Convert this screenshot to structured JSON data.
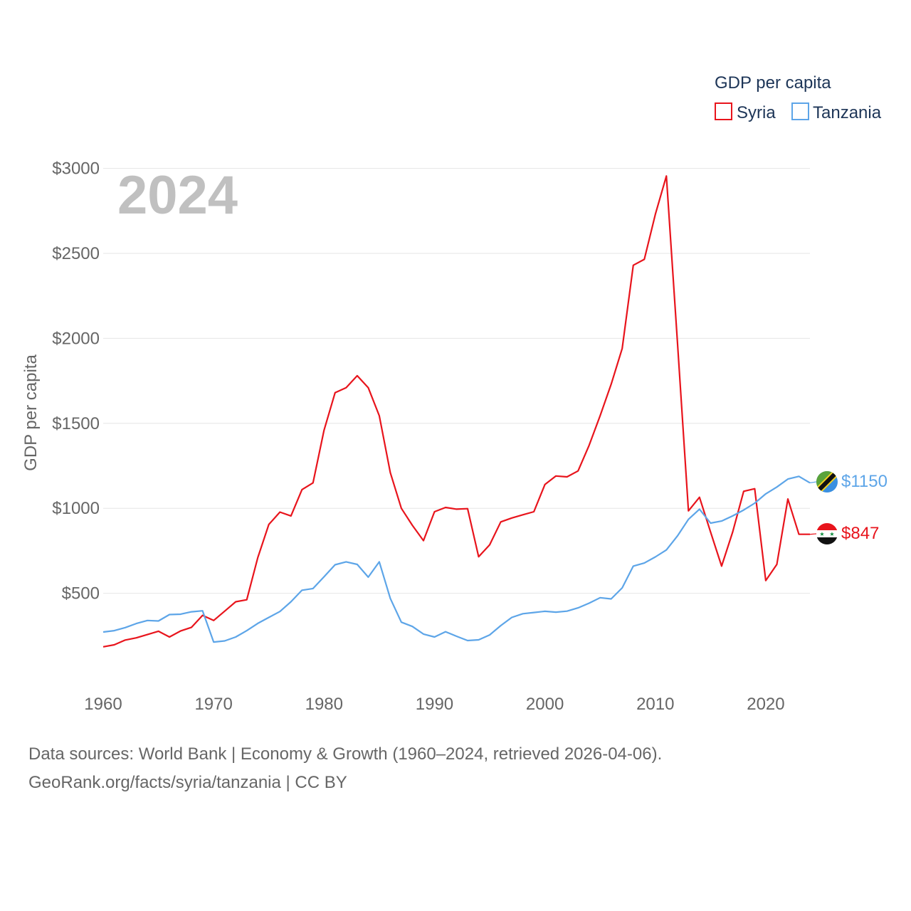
{
  "chart_data": {
    "type": "line",
    "title": "GDP per capita",
    "current_year_label": "2024",
    "ylabel": "GDP per capita",
    "xlabel": "",
    "xlim": [
      1960,
      2024
    ],
    "ylim": [
      0,
      3000
    ],
    "y_ticks": [
      500,
      1000,
      1500,
      2000,
      2500,
      3000
    ],
    "y_tick_labels": [
      "$500",
      "$1000",
      "$1500",
      "$2000",
      "$2500",
      "$3000"
    ],
    "x_ticks": [
      1960,
      1970,
      1980,
      1990,
      2000,
      2010,
      2020
    ],
    "x_tick_labels": [
      "1960",
      "1970",
      "1980",
      "1990",
      "2000",
      "2010",
      "2020"
    ],
    "grid": true,
    "legend_position": "top-right",
    "series": [
      {
        "name": "Syria",
        "color": "#e8141c",
        "end_label": "$847",
        "flag": "syria-flag",
        "x": [
          1960,
          1961,
          1962,
          1963,
          1964,
          1965,
          1966,
          1967,
          1968,
          1969,
          1970,
          1971,
          1972,
          1973,
          1974,
          1975,
          1976,
          1977,
          1978,
          1979,
          1980,
          1981,
          1982,
          1983,
          1984,
          1985,
          1986,
          1987,
          1988,
          1989,
          1990,
          1991,
          1992,
          1993,
          1994,
          1995,
          1996,
          1997,
          1998,
          1999,
          2000,
          2001,
          2002,
          2003,
          2004,
          2005,
          2006,
          2007,
          2008,
          2009,
          2010,
          2011,
          2012,
          2013,
          2014,
          2015,
          2016,
          2017,
          2018,
          2019,
          2020,
          2021,
          2022,
          2023,
          2024
        ],
        "values": [
          185,
          197,
          225,
          238,
          257,
          277,
          243,
          278,
          300,
          370,
          340,
          395,
          450,
          462,
          710,
          905,
          978,
          955,
          1110,
          1150,
          1460,
          1680,
          1710,
          1780,
          1710,
          1545,
          1210,
          1000,
          900,
          810,
          980,
          1005,
          995,
          998,
          715,
          785,
          920,
          943,
          962,
          980,
          1140,
          1190,
          1185,
          1220,
          1370,
          1545,
          1730,
          1940,
          2430,
          2465,
          2730,
          2955,
          1980,
          985,
          1065,
          860,
          660,
          860,
          1100,
          1115,
          575,
          670,
          1055,
          847,
          847
        ]
      },
      {
        "name": "Tanzania",
        "color": "#5da5e8",
        "end_label": "$1150",
        "flag": "tanzania-flag",
        "x": [
          1960,
          1961,
          1962,
          1963,
          1964,
          1965,
          1966,
          1967,
          1968,
          1969,
          1970,
          1971,
          1972,
          1973,
          1974,
          1975,
          1976,
          1977,
          1978,
          1979,
          1980,
          1981,
          1982,
          1983,
          1984,
          1985,
          1986,
          1987,
          1988,
          1989,
          1990,
          1991,
          1992,
          1993,
          1994,
          1995,
          1996,
          1997,
          1998,
          1999,
          2000,
          2001,
          2002,
          2003,
          2004,
          2005,
          2006,
          2007,
          2008,
          2009,
          2010,
          2011,
          2012,
          2013,
          2014,
          2015,
          2016,
          2017,
          2018,
          2019,
          2020,
          2021,
          2022,
          2023,
          2024
        ],
        "values": [
          272,
          280,
          298,
          322,
          340,
          337,
          375,
          377,
          391,
          397,
          213,
          220,
          243,
          280,
          323,
          358,
          393,
          450,
          518,
          528,
          597,
          668,
          685,
          670,
          595,
          685,
          470,
          330,
          305,
          260,
          243,
          274,
          247,
          222,
          226,
          255,
          310,
          358,
          380,
          387,
          394,
          389,
          395,
          414,
          442,
          474,
          467,
          532,
          660,
          678,
          714,
          755,
          837,
          935,
          995,
          913,
          925,
          955,
          990,
          1030,
          1085,
          1125,
          1172,
          1188,
          1150
        ]
      }
    ]
  },
  "footer": {
    "line1": "Data sources: World Bank | Economy & Growth (1960–2024, retrieved 2026-04-06).",
    "line2": "GeoRank.org/facts/syria/tanzania | CC BY"
  }
}
